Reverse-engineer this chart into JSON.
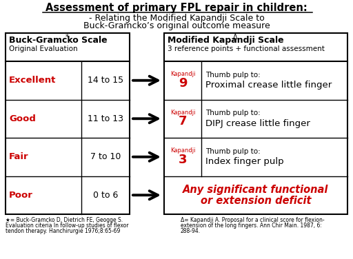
{
  "title_line1": "Assessment of primary FPL repair in children:",
  "title_line2": "- Relating the Modified Kapandji Scale to",
  "title_line3": "Buck-Gramcko’s original outcome measure",
  "bg_color": "#ffffff",
  "left_header_bold": "Buck-Gramcko Scale ",
  "left_header_star": "*",
  "left_subheader": "Original Evaluation",
  "right_header_bold": "Modified Kapandji Scale ",
  "right_header_delta": "Δ",
  "right_subheader": "3 reference points + functional assessment",
  "left_rows": [
    {
      "label": "Excellent",
      "range": "14 to 15"
    },
    {
      "label": "Good",
      "range": "11 to 13"
    },
    {
      "label": "Fair",
      "range": "7 to 10"
    },
    {
      "label": "Poor",
      "range": "0 to 6"
    }
  ],
  "right_rows": [
    {
      "kapandji_num": "9",
      "desc_top": "Thumb pulp to:",
      "desc_bot": "Proximal crease little finger"
    },
    {
      "kapandji_num": "7",
      "desc_top": "Thumb pulp to:",
      "desc_bot": "DIPJ crease little finger"
    },
    {
      "kapandji_num": "3",
      "desc_top": "Thumb pulp to:",
      "desc_bot": "Index finger pulp"
    },
    {
      "kapandji_num": "",
      "desc_top": "Any significant functional",
      "desc_bot": "or extension deficit"
    }
  ],
  "red_color": "#cc0000",
  "black_color": "#000000",
  "footnote_left_line1": "★= Buck-Gramcko D, Dietrich FE, Geogge S.",
  "footnote_left_line2": "Evaluation citeria In follow-up studies of flexor",
  "footnote_left_line3": "tendon therapy. Hanchirurgie 1976;8:65-69",
  "footnote_right_line1": "Δ= Kapandji A. Proposal for a clinical score for flexion-",
  "footnote_right_line2": "extension of the long fingers. Ann Chir Main. 1987, 6:",
  "footnote_right_line3": "288-94."
}
